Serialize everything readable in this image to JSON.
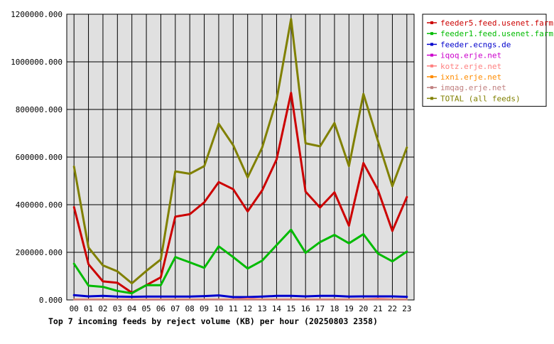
{
  "chart_data": {
    "type": "line",
    "title": "Top 7 incoming feeds by reject volume (KB) per hour (20250803 2358)",
    "xlabel": "",
    "ylabel": "",
    "ylim": [
      0,
      1200000
    ],
    "yticks": [
      "0.000",
      "200000.000",
      "400000.000",
      "600000.000",
      "800000.000",
      "1000000.000",
      "1200000.000"
    ],
    "ytick_values": [
      0,
      200000,
      400000,
      600000,
      800000,
      1000000,
      1200000
    ],
    "x": [
      "00",
      "01",
      "02",
      "03",
      "04",
      "05",
      "06",
      "07",
      "08",
      "09",
      "10",
      "11",
      "12",
      "13",
      "14",
      "15",
      "16",
      "17",
      "18",
      "19",
      "20",
      "21",
      "22",
      "23"
    ],
    "grid": true,
    "legend_position": "top-right",
    "plot_background": "#e0e0e0",
    "series": [
      {
        "name": "feeder5.feed.usenet.farm",
        "color": "#cc0000",
        "values": [
          390000,
          150000,
          78000,
          72000,
          30000,
          62000,
          95000,
          350000,
          360000,
          410000,
          495000,
          465000,
          372000,
          460000,
          590000,
          870000,
          455000,
          388000,
          452000,
          312000,
          575000,
          462000,
          290000,
          432000
        ]
      },
      {
        "name": "feeder1.feed.usenet.farm",
        "color": "#00bb00",
        "values": [
          152000,
          60000,
          55000,
          38000,
          28000,
          62000,
          62000,
          180000,
          158000,
          135000,
          225000,
          180000,
          132000,
          165000,
          230000,
          295000,
          198000,
          243000,
          273000,
          238000,
          276000,
          195000,
          162000,
          203000
        ]
      },
      {
        "name": "feeder.ecngs.de",
        "color": "#0000cc",
        "values": [
          20000,
          15000,
          17000,
          14000,
          13000,
          14000,
          14000,
          14000,
          14000,
          16000,
          19000,
          12000,
          12000,
          14000,
          17000,
          17000,
          15000,
          17000,
          17000,
          14000,
          15000,
          15000,
          15000,
          13000
        ]
      },
      {
        "name": "iqoq.erje.net",
        "color": "#cc00cc",
        "values": [
          2000,
          1500,
          1500,
          1500,
          1200,
          1200,
          1200,
          1500,
          1500,
          1500,
          1500,
          1500,
          1500,
          1500,
          1500,
          1500,
          1500,
          1500,
          1500,
          1500,
          1500,
          1500,
          1500,
          1500
        ]
      },
      {
        "name": "kotz.erje.net",
        "color": "#ff8080",
        "values": [
          3000,
          3000,
          3000,
          3000,
          3000,
          3000,
          3000,
          3000,
          3000,
          3000,
          3000,
          3000,
          6000,
          3000,
          3000,
          3000,
          3000,
          3000,
          3000,
          3000,
          3000,
          6000,
          3000,
          3000
        ]
      },
      {
        "name": "ixni.erje.net",
        "color": "#ff8c00",
        "values": [
          1500,
          1500,
          1500,
          1500,
          1500,
          1500,
          1500,
          1500,
          1500,
          1500,
          1500,
          1500,
          1500,
          1500,
          1500,
          1500,
          1500,
          1500,
          1500,
          1500,
          1500,
          1500,
          1500,
          1500
        ]
      },
      {
        "name": "imqag.erje.net",
        "color": "#c08080",
        "values": [
          1000,
          1000,
          1000,
          1000,
          1000,
          1000,
          1000,
          1000,
          1000,
          1000,
          1000,
          1000,
          1000,
          1000,
          1000,
          1000,
          1000,
          1000,
          1000,
          1000,
          1000,
          1000,
          1000,
          1000
        ]
      },
      {
        "name": "TOTAL (all feeds)",
        "color": "#808000",
        "values": [
          560000,
          220000,
          145000,
          120000,
          70000,
          122000,
          170000,
          540000,
          530000,
          562000,
          740000,
          650000,
          515000,
          640000,
          840000,
          1180000,
          658000,
          645000,
          743000,
          562000,
          865000,
          668000,
          478000,
          640000
        ]
      }
    ]
  }
}
